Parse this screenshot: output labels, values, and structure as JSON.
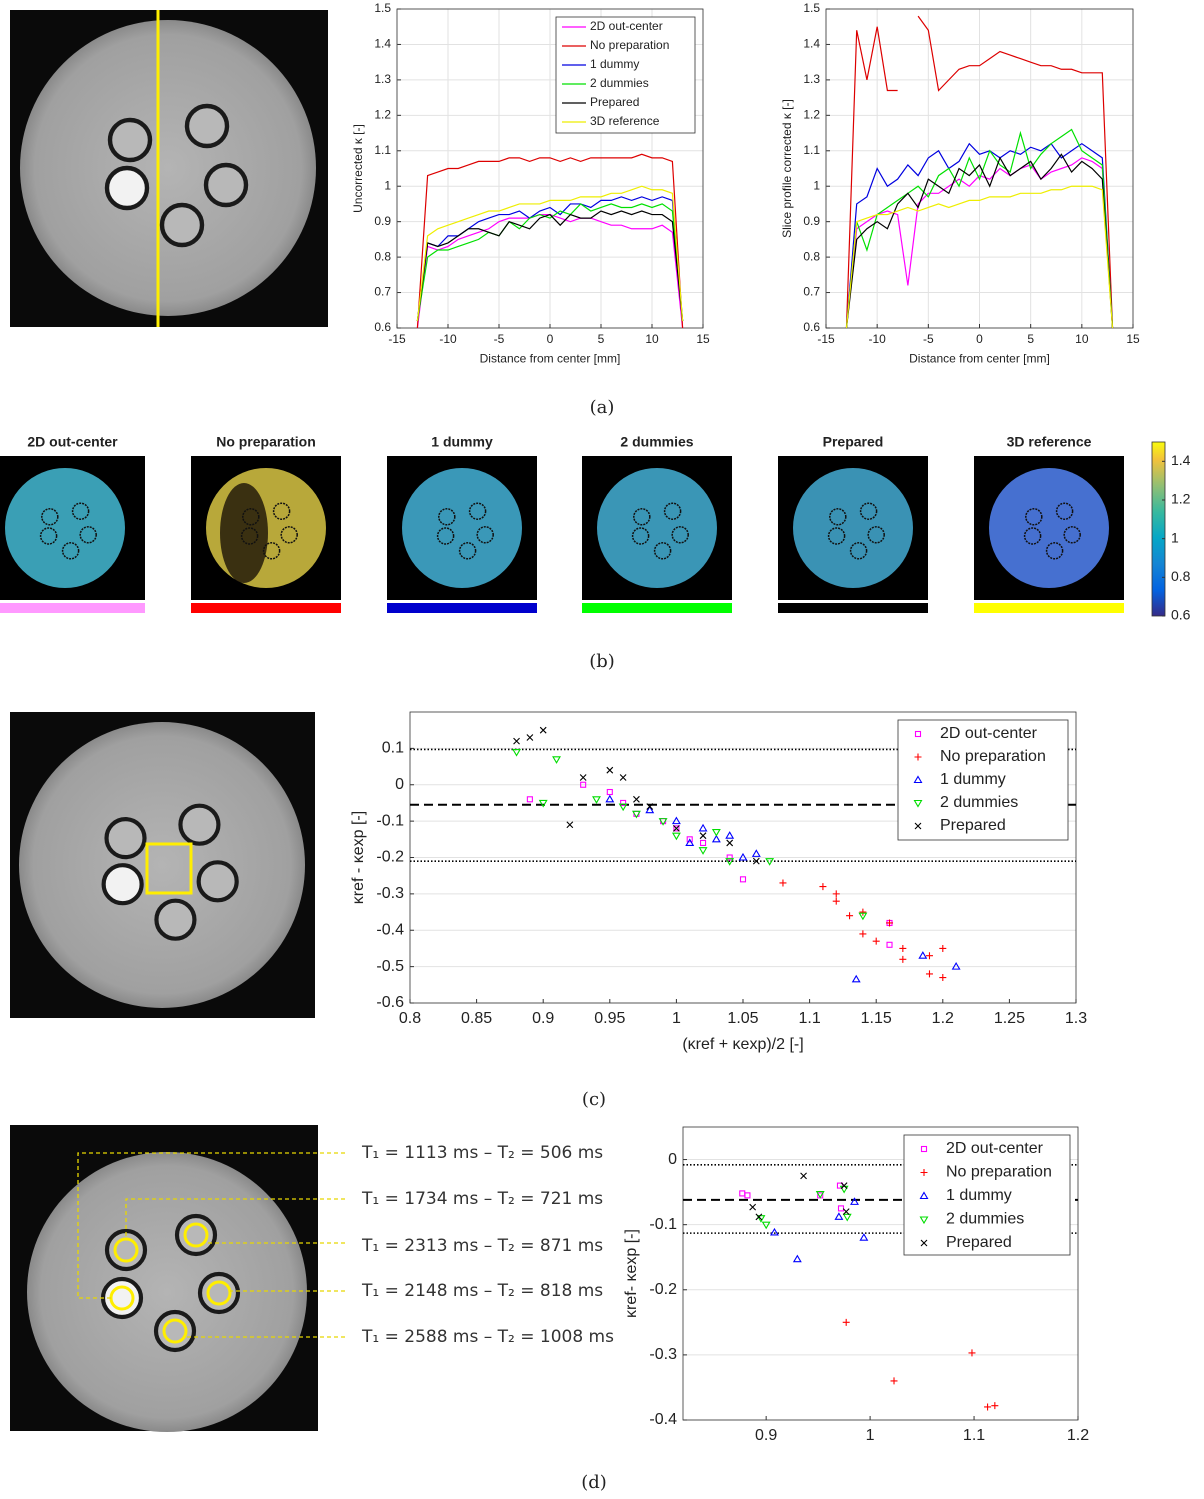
{
  "panel_labels": [
    "(a)",
    "(b)",
    "(c)",
    "(d)"
  ],
  "maps": [
    {
      "title": "2D out-center",
      "color": "#ff99ff"
    },
    {
      "title": "No preparation",
      "color": "#ff0000"
    },
    {
      "title": "1 dummy",
      "color": "#0000cc"
    },
    {
      "title": "2 dummies",
      "color": "#00ff00"
    },
    {
      "title": "Prepared",
      "color": "#000000"
    },
    {
      "title": "3D reference",
      "color": "#ffff00"
    }
  ],
  "annotations": [
    "T₁ = 1113 ms – T₂ = 506 ms",
    "T₁ = 1734 ms – T₂ = 721 ms",
    "T₁ = 2313 ms – T₂ = 871 ms",
    "T₁ = 2148 ms – T₂ = 818 ms",
    "T₁ = 2588 ms – T₂ = 1008 ms"
  ],
  "chart_data": [
    {
      "type": "line",
      "ylabel": "Uncorrected κ [-]",
      "xlabel": "Distance from center [mm]",
      "x": [
        -13,
        -12,
        -11,
        -10,
        -9,
        -8,
        -7,
        -6,
        -5,
        -4,
        -3,
        -2,
        -1,
        0,
        1,
        2,
        3,
        4,
        5,
        6,
        7,
        8,
        9,
        10,
        11,
        12,
        13
      ],
      "xlim": [
        -15,
        15
      ],
      "xticks": [
        -15,
        -10,
        -5,
        0,
        5,
        10,
        15
      ],
      "ylim": [
        0.6,
        1.5
      ],
      "yticks": [
        0.6,
        0.7,
        0.8,
        0.9,
        1,
        1.1,
        1.2,
        1.3,
        1.4,
        1.5
      ],
      "grid": "both",
      "legend": "upper right",
      "series": [
        {
          "name": "2D out-center",
          "color": "#ff00ff",
          "values": [
            0.6,
            0.83,
            0.82,
            0.83,
            0.85,
            0.86,
            0.87,
            0.88,
            0.9,
            0.91,
            0.91,
            0.91,
            0.92,
            0.92,
            0.91,
            0.9,
            0.91,
            0.91,
            0.9,
            0.89,
            0.89,
            0.88,
            0.88,
            0.88,
            0.89,
            0.87,
            0.6
          ]
        },
        {
          "name": "No preparation",
          "color": "#dd0000",
          "values": [
            0.6,
            1.03,
            1.04,
            1.05,
            1.05,
            1.06,
            1.07,
            1.07,
            1.07,
            1.08,
            1.08,
            1.07,
            1.08,
            1.08,
            1.07,
            1.08,
            1.07,
            1.08,
            1.08,
            1.08,
            1.08,
            1.08,
            1.09,
            1.08,
            1.08,
            1.07,
            0.6
          ]
        },
        {
          "name": "1 dummy",
          "color": "#0000e0",
          "values": [
            0.62,
            0.84,
            0.83,
            0.86,
            0.86,
            0.88,
            0.9,
            0.91,
            0.92,
            0.92,
            0.93,
            0.91,
            0.93,
            0.94,
            0.92,
            0.95,
            0.95,
            0.94,
            0.96,
            0.96,
            0.97,
            0.96,
            0.97,
            0.96,
            0.97,
            0.96,
            0.62
          ]
        },
        {
          "name": "2 dummies",
          "color": "#00e000",
          "values": [
            0.62,
            0.8,
            0.82,
            0.82,
            0.83,
            0.84,
            0.85,
            0.87,
            0.86,
            0.9,
            0.88,
            0.91,
            0.92,
            0.91,
            0.93,
            0.92,
            0.95,
            0.93,
            0.94,
            0.95,
            0.94,
            0.94,
            0.95,
            0.94,
            0.95,
            0.93,
            0.62
          ]
        },
        {
          "name": "Prepared",
          "color": "#000000",
          "values": [
            0.62,
            0.84,
            0.83,
            0.84,
            0.86,
            0.88,
            0.88,
            0.87,
            0.86,
            0.9,
            0.89,
            0.88,
            0.91,
            0.92,
            0.89,
            0.92,
            0.91,
            0.91,
            0.93,
            0.92,
            0.93,
            0.92,
            0.93,
            0.92,
            0.92,
            0.9,
            0.62
          ]
        },
        {
          "name": "3D reference",
          "color": "#eeee00",
          "values": [
            0.62,
            0.86,
            0.88,
            0.89,
            0.9,
            0.91,
            0.92,
            0.93,
            0.93,
            0.94,
            0.95,
            0.95,
            0.95,
            0.96,
            0.96,
            0.96,
            0.97,
            0.97,
            0.97,
            0.98,
            0.98,
            0.99,
            1,
            0.99,
            0.99,
            0.98,
            0.62
          ]
        }
      ]
    },
    {
      "type": "line",
      "ylabel": "Slice profile corrected κ [-]",
      "xlabel": "Distance from center [mm]",
      "x": [
        -13,
        -12,
        -11,
        -10,
        -9,
        -8,
        -7,
        -6,
        -5,
        -4,
        -3,
        -2,
        -1,
        0,
        1,
        2,
        3,
        4,
        5,
        6,
        7,
        8,
        9,
        10,
        11,
        12,
        13
      ],
      "xlim": [
        -15,
        15
      ],
      "xticks": [
        -15,
        -10,
        -5,
        0,
        5,
        10,
        15
      ],
      "ylim": [
        0.6,
        1.5
      ],
      "yticks": [
        0.6,
        0.7,
        0.8,
        0.9,
        1,
        1.1,
        1.2,
        1.3,
        1.4,
        1.5
      ],
      "grid": "both",
      "series": [
        {
          "name": "2D out-center",
          "color": "#ff00ff",
          "values": [
            0.6,
            0.88,
            0.9,
            0.92,
            0.93,
            0.92,
            0.72,
            0.95,
            0.98,
            0.98,
            1,
            1.02,
            1,
            1.03,
            1.02,
            1.05,
            1.03,
            1.05,
            1.06,
            1.02,
            1.04,
            1.05,
            1.06,
            1.08,
            1.07,
            1.05,
            0.6
          ]
        },
        {
          "name": "No preparation",
          "color": "#dd0000",
          "values": [
            0.6,
            1.44,
            1.3,
            1.45,
            1.27,
            1.27,
            null,
            1.48,
            1.44,
            1.27,
            1.3,
            1.33,
            1.34,
            1.34,
            1.36,
            1.38,
            1.37,
            1.36,
            1.35,
            1.34,
            1.34,
            1.33,
            1.33,
            1.32,
            1.32,
            1.32,
            0.6
          ]
        },
        {
          "name": "1 dummy",
          "color": "#0000e0",
          "values": [
            0.6,
            0.95,
            0.97,
            1.05,
            1,
            1.02,
            1.06,
            1.03,
            1.08,
            1.1,
            1.05,
            1.07,
            1.12,
            1.09,
            1.1,
            1.08,
            1.1,
            1.09,
            1.11,
            1.1,
            1.12,
            1.08,
            1.1,
            1.12,
            1.1,
            1.08,
            0.6
          ]
        },
        {
          "name": "2 dummies",
          "color": "#00e000",
          "values": [
            0.6,
            0.9,
            0.82,
            0.92,
            0.94,
            0.96,
            0.98,
            1,
            0.97,
            1.03,
            1.05,
            1,
            1.08,
            1.02,
            1.1,
            1.06,
            1.04,
            1.15,
            1.05,
            1.09,
            1.12,
            1.14,
            1.16,
            1.1,
            1.08,
            1.06,
            0.6
          ]
        },
        {
          "name": "Prepared",
          "color": "#000000",
          "values": [
            0.6,
            0.85,
            0.88,
            0.9,
            0.88,
            0.95,
            0.98,
            0.94,
            1.02,
            1,
            0.98,
            1.05,
            1.03,
            1.06,
            1,
            1.08,
            1.03,
            1.05,
            1.07,
            1.02,
            1.05,
            1.09,
            1.04,
            1.07,
            1.05,
            1.02,
            0.6
          ]
        },
        {
          "name": "3D reference",
          "color": "#eeee00",
          "values": [
            0.6,
            0.9,
            0.91,
            0.92,
            0.92,
            0.93,
            0.94,
            0.93,
            0.94,
            0.95,
            0.94,
            0.95,
            0.96,
            0.96,
            0.97,
            0.97,
            0.97,
            0.98,
            0.98,
            0.98,
            0.99,
            0.99,
            1,
            1,
            1,
            0.99,
            0.6
          ]
        }
      ]
    },
    {
      "type": "colorbar",
      "colormap": "parula",
      "ylim": [
        0.6,
        1.5
      ],
      "yticks": [
        0.6,
        0.8,
        1,
        1.2,
        1.4
      ]
    },
    {
      "type": "scatter",
      "xlabel": "(κref + κexp)/2  [-]",
      "ylabel": "κref - κexp  [-]",
      "xlim": [
        0.8,
        1.3
      ],
      "xticks": [
        0.8,
        0.85,
        0.9,
        0.95,
        1,
        1.05,
        1.1,
        1.15,
        1.2,
        1.25,
        1.3
      ],
      "ylim": [
        -0.6,
        0.2
      ],
      "yticks": [
        -0.6,
        -0.5,
        -0.4,
        -0.3,
        -0.2,
        -0.1,
        0,
        0.1
      ],
      "grid": "y",
      "legend": "upper right",
      "reference_lines": [
        {
          "value": 0.097,
          "style": "dotted"
        },
        {
          "value": -0.055,
          "style": "dashed"
        },
        {
          "value": -0.21,
          "style": "dotted"
        }
      ],
      "series": [
        {
          "name": "2D out-center",
          "color": "#ff00ff",
          "marker": "square",
          "x": [
            0.89,
            0.93,
            0.95,
            0.97,
            0.99,
            1,
            1.02,
            1.04,
            1.05,
            1.16,
            1.16,
            0.96,
            1.01
          ],
          "values": [
            -0.04,
            0,
            -0.02,
            -0.08,
            -0.1,
            -0.12,
            -0.16,
            -0.2,
            -0.26,
            -0.44,
            -0.38,
            -0.05,
            -0.15
          ]
        },
        {
          "name": "No preparation",
          "color": "#ff0000",
          "marker": "plus",
          "x": [
            1.08,
            1.11,
            1.12,
            1.13,
            1.14,
            1.14,
            1.15,
            1.16,
            1.17,
            1.17,
            1.19,
            1.19,
            1.2,
            1.2,
            1.12
          ],
          "values": [
            -0.27,
            -0.28,
            -0.32,
            -0.36,
            -0.35,
            -0.41,
            -0.43,
            -0.38,
            -0.45,
            -0.48,
            -0.47,
            -0.52,
            -0.45,
            -0.53,
            -0.3
          ]
        },
        {
          "name": "1 dummy",
          "color": "#0000ff",
          "marker": "triangle-up",
          "x": [
            0.95,
            0.98,
            1,
            1.02,
            1.03,
            1.04,
            1.05,
            1.06,
            1.135,
            1.185,
            1.21,
            1.01
          ],
          "values": [
            -0.04,
            -0.07,
            -0.1,
            -0.12,
            -0.15,
            -0.14,
            -0.2,
            -0.19,
            -0.535,
            -0.47,
            -0.5,
            -0.16
          ]
        },
        {
          "name": "2 dummies",
          "color": "#00dd00",
          "marker": "triangle-down",
          "x": [
            0.88,
            0.9,
            0.91,
            0.94,
            0.96,
            0.97,
            0.99,
            1,
            1.02,
            1.04,
            1.07,
            1.14,
            1.03
          ],
          "values": [
            0.09,
            -0.05,
            0.07,
            -0.04,
            -0.06,
            -0.08,
            -0.1,
            -0.14,
            -0.18,
            -0.21,
            -0.21,
            -0.36,
            -0.13
          ]
        },
        {
          "name": "Prepared",
          "color": "#000000",
          "marker": "x",
          "x": [
            0.88,
            0.89,
            0.9,
            0.92,
            0.93,
            0.95,
            0.96,
            0.98,
            1,
            1.02,
            1.04,
            1.06,
            0.97
          ],
          "values": [
            0.12,
            0.13,
            0.15,
            -0.11,
            0.02,
            0.04,
            0.02,
            -0.06,
            -0.12,
            -0.14,
            -0.16,
            -0.21,
            -0.04
          ]
        }
      ]
    },
    {
      "type": "scatter",
      "ylabel": "κref- κexp [-]",
      "xlim": [
        0.82,
        1.2
      ],
      "xticks": [
        0.9,
        1,
        1.1,
        1.2
      ],
      "ylim": [
        -0.4,
        0.05
      ],
      "yticks": [
        -0.4,
        -0.3,
        -0.2,
        -0.1,
        0
      ],
      "grid": "y",
      "legend": "upper right",
      "reference_lines": [
        {
          "value": -0.008,
          "style": "dotted"
        },
        {
          "value": -0.062,
          "style": "dashed"
        },
        {
          "value": -0.113,
          "style": "dotted"
        }
      ],
      "series": [
        {
          "name": "2D out-center",
          "color": "#ff00ff",
          "marker": "square",
          "x": [
            0.877,
            0.882,
            0.952,
            0.971,
            0.972
          ],
          "values": [
            -0.052,
            -0.055,
            -0.055,
            -0.04,
            -0.075
          ]
        },
        {
          "name": "No preparation",
          "color": "#ff0000",
          "marker": "plus",
          "x": [
            0.977,
            1.023,
            1.098,
            1.113,
            1.12
          ],
          "values": [
            -0.25,
            -0.34,
            -0.297,
            -0.38,
            -0.378
          ]
        },
        {
          "name": "1 dummy",
          "color": "#0000ff",
          "marker": "triangle-up",
          "x": [
            0.908,
            0.93,
            0.97,
            0.985,
            0.994
          ],
          "values": [
            -0.112,
            -0.153,
            -0.088,
            -0.065,
            -0.12
          ]
        },
        {
          "name": "2 dummies",
          "color": "#00dd00",
          "marker": "triangle-down",
          "x": [
            0.895,
            0.9,
            0.952,
            0.978,
            0.975
          ],
          "values": [
            -0.09,
            -0.1,
            -0.053,
            -0.088,
            -0.045
          ]
        },
        {
          "name": "Prepared",
          "color": "#000000",
          "marker": "x",
          "x": [
            0.887,
            0.893,
            0.936,
            0.975,
            0.977
          ],
          "values": [
            -0.073,
            -0.088,
            -0.025,
            -0.04,
            -0.08
          ]
        }
      ]
    }
  ]
}
